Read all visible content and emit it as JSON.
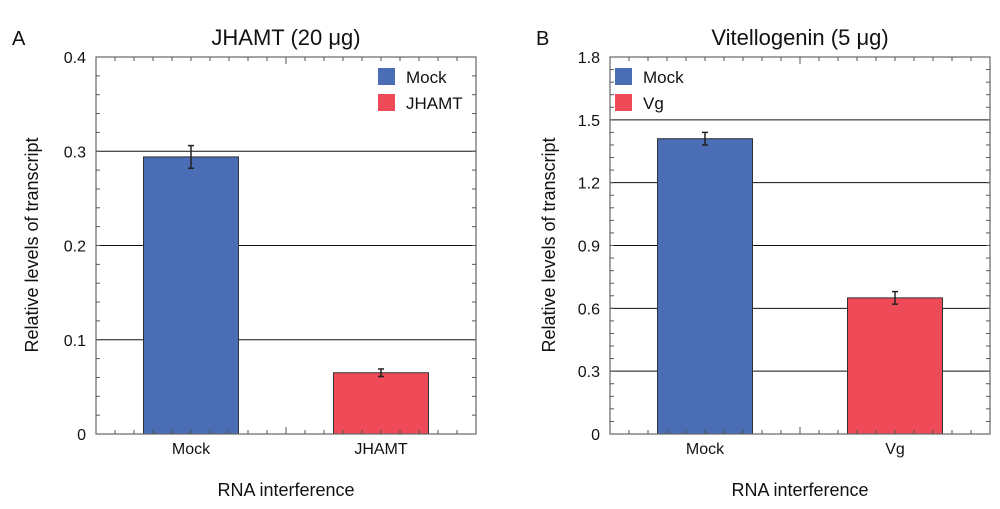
{
  "chart_data": [
    {
      "type": "bar",
      "panel_label": "A",
      "title": "JHAMT (20 μg)",
      "xlabel": "RNA interference",
      "ylabel": "Relative levels of transcript",
      "categories": [
        "Mock",
        "JHAMT"
      ],
      "values": [
        0.294,
        0.065
      ],
      "errors": [
        0.012,
        0.004
      ],
      "colors": [
        "#4a6db5",
        "#ef4a57"
      ],
      "ylim": [
        0,
        0.4
      ],
      "yticks": [
        0,
        0.1,
        0.2,
        0.3,
        0.4
      ],
      "ytick_labels": [
        "0",
        "0.1",
        "0.2",
        "0.3",
        "0.4"
      ],
      "grid": true,
      "legend": {
        "position": "top-right",
        "entries": [
          {
            "label": "Mock",
            "color": "#4a6db5"
          },
          {
            "label": "JHAMT",
            "color": "#ef4a57"
          }
        ]
      }
    },
    {
      "type": "bar",
      "panel_label": "B",
      "title": "Vitellogenin (5 μg)",
      "xlabel": "RNA interference",
      "ylabel": "Relative levels of transcript",
      "categories": [
        "Mock",
        "Vg"
      ],
      "values": [
        1.41,
        0.65
      ],
      "errors": [
        0.03,
        0.03
      ],
      "colors": [
        "#4a6db5",
        "#ef4a57"
      ],
      "ylim": [
        0,
        1.8
      ],
      "yticks": [
        0,
        0.3,
        0.6,
        0.9,
        1.2,
        1.5,
        1.8
      ],
      "ytick_labels": [
        "0",
        "0.3",
        "0.6",
        "0.9",
        "1.2",
        "1.5",
        "1.8"
      ],
      "grid": true,
      "legend": {
        "position": "top-left",
        "entries": [
          {
            "label": "Mock",
            "color": "#4a6db5"
          },
          {
            "label": "Vg",
            "color": "#ef4a57"
          }
        ]
      }
    }
  ]
}
